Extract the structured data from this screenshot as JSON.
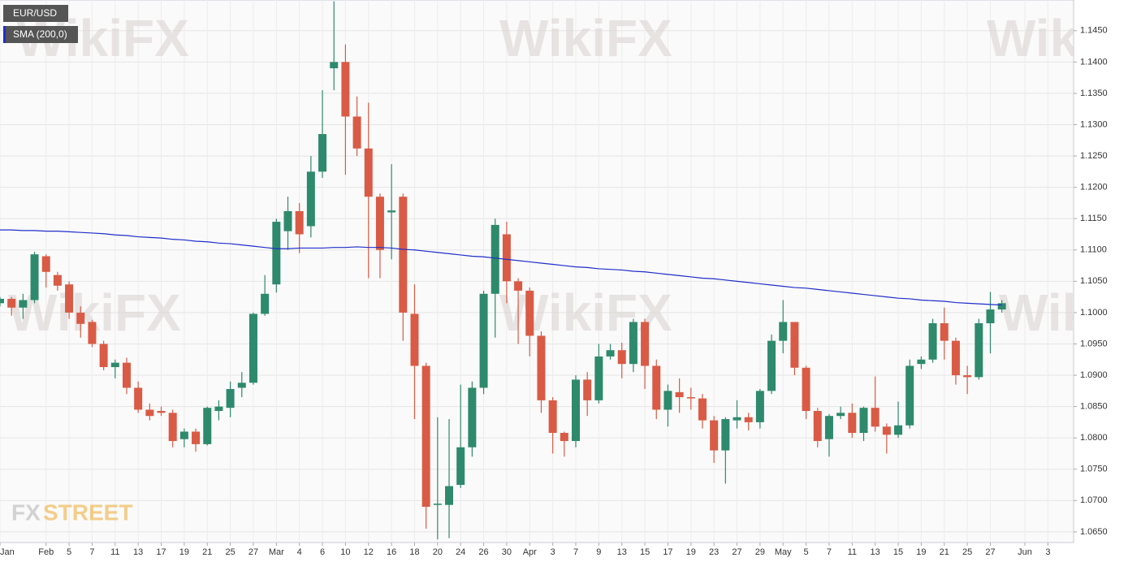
{
  "chart_data": {
    "type": "candlestick",
    "watermark": "WikiFX",
    "logo": [
      "FX",
      "STREET"
    ],
    "categories": [
      "Jan",
      null,
      null,
      null,
      "Feb",
      null,
      "5",
      null,
      "7",
      null,
      "11",
      null,
      "13",
      null,
      "17",
      null,
      "19",
      null,
      "21",
      null,
      "25",
      null,
      "27",
      null,
      "Mar",
      null,
      "4",
      null,
      "6",
      null,
      "10",
      null,
      "12",
      null,
      "16",
      null,
      "18",
      null,
      "20",
      null,
      "24",
      null,
      "26",
      null,
      "30",
      null,
      "Apr",
      null,
      "3",
      null,
      "7",
      null,
      "9",
      null,
      "13",
      null,
      "15",
      null,
      "17",
      null,
      "19",
      null,
      "23",
      null,
      "27",
      null,
      "29",
      null,
      "May",
      null,
      "5",
      null,
      "7",
      null,
      "11",
      null,
      "13",
      null,
      "15",
      null,
      "19",
      null,
      "21",
      null,
      "25",
      null,
      "27",
      null,
      null,
      "Jun",
      null,
      "3"
    ],
    "up_color": "#2e8a6c",
    "down_color": "#d95b45",
    "series": [
      {
        "name": "EUR/USD",
        "open": [
          1.1015,
          1.1022,
          1.1008,
          1.102,
          1.109,
          1.106,
          1.1045,
          1.1,
          1.0985,
          1.095,
          1.0913,
          1.092,
          1.088,
          1.0845,
          1.0843,
          1.084,
          1.0798,
          1.081,
          1.079,
          1.0843,
          1.0848,
          1.088,
          1.0888,
          1.0998,
          1.1045,
          1.113,
          1.1162,
          1.1138,
          1.1225,
          1.139,
          1.14,
          1.1313,
          1.1262,
          1.1185,
          1.116,
          1.1185,
          1.0998,
          1.0915,
          1.0693,
          1.0693,
          1.0725,
          1.0785,
          1.088,
          1.103,
          1.1125,
          1.105,
          1.1035,
          1.0963,
          1.086,
          1.0808,
          1.0795,
          1.0893,
          1.086,
          1.093,
          1.094,
          1.0918,
          1.0985,
          1.0915,
          1.0845,
          1.0873,
          1.0865,
          1.0863,
          1.0828,
          1.078,
          1.0828,
          1.0833,
          1.0825,
          1.0875,
          1.0955,
          1.0985,
          1.0912,
          1.0843,
          1.0798,
          1.0835,
          1.084,
          1.0808,
          1.0848,
          1.0818,
          1.0805,
          1.082,
          1.0918,
          1.0925,
          1.0983,
          1.0955,
          1.09,
          1.0897,
          1.0983,
          1.1005,
          null,
          null,
          null,
          null
        ],
        "high": [
          1.1025,
          1.1025,
          1.103,
          1.1097,
          1.1093,
          1.1065,
          1.105,
          1.101,
          1.0988,
          1.0955,
          1.0925,
          1.0928,
          1.089,
          1.0855,
          1.085,
          1.0845,
          1.0815,
          1.0815,
          1.085,
          1.086,
          1.089,
          1.0905,
          1.1,
          1.106,
          1.115,
          1.1185,
          1.1175,
          1.125,
          1.1355,
          1.1497,
          1.1428,
          1.1345,
          1.1335,
          1.119,
          1.1237,
          1.119,
          1.1045,
          1.092,
          1.0833,
          1.083,
          1.0885,
          1.089,
          1.1035,
          1.115,
          1.1145,
          1.1055,
          1.104,
          1.097,
          1.0865,
          1.081,
          1.09,
          1.0905,
          1.095,
          1.095,
          1.0952,
          1.099,
          1.099,
          1.0925,
          1.0885,
          1.0895,
          1.088,
          1.087,
          1.0835,
          1.0833,
          1.086,
          1.084,
          1.0878,
          1.0965,
          1.102,
          1.0985,
          1.0915,
          1.0848,
          1.0838,
          1.085,
          1.0855,
          1.085,
          1.0898,
          1.0823,
          1.0858,
          1.0925,
          1.093,
          1.099,
          1.1008,
          1.096,
          1.0915,
          1.099,
          1.1033,
          1.102,
          null,
          null,
          null,
          null
        ],
        "low": [
          1.101,
          1.0995,
          1.099,
          1.1015,
          1.104,
          1.1035,
          1.099,
          1.096,
          1.0945,
          1.0908,
          1.0895,
          1.087,
          1.084,
          1.0828,
          1.0835,
          1.0785,
          1.0785,
          1.0778,
          1.0788,
          1.0828,
          1.0833,
          1.0865,
          1.0885,
          1.0995,
          1.1032,
          1.11,
          1.1095,
          1.112,
          1.1215,
          1.1355,
          1.122,
          1.125,
          1.1055,
          1.1055,
          1.1085,
          1.0955,
          1.083,
          1.0655,
          1.0638,
          1.064,
          1.072,
          1.077,
          1.087,
          1.096,
          1.1015,
          1.095,
          1.093,
          1.084,
          1.0775,
          1.077,
          1.0785,
          1.0835,
          1.0855,
          1.0925,
          1.0895,
          1.0905,
          1.0878,
          1.083,
          1.0818,
          1.084,
          1.0845,
          1.0815,
          1.076,
          1.0727,
          1.0815,
          1.0812,
          1.0815,
          1.087,
          1.0935,
          1.09,
          1.083,
          1.0785,
          1.077,
          1.083,
          1.08,
          1.0795,
          1.081,
          1.0775,
          1.08,
          1.0815,
          1.091,
          1.092,
          1.0925,
          1.0885,
          1.087,
          1.0893,
          1.0935,
          1.1,
          null,
          null,
          null,
          null
        ],
        "close": [
          1.1022,
          1.1008,
          1.102,
          1.1093,
          1.1065,
          1.1043,
          1.1,
          1.0982,
          1.095,
          1.0913,
          1.092,
          1.088,
          1.0845,
          1.0835,
          1.084,
          1.0795,
          1.081,
          1.079,
          1.0848,
          1.085,
          1.0878,
          1.0888,
          1.0998,
          1.103,
          1.1145,
          1.1162,
          1.1125,
          1.1225,
          1.1285,
          1.14,
          1.1313,
          1.1262,
          1.1185,
          1.11,
          1.1163,
          1.1,
          1.0915,
          1.069,
          1.0695,
          1.0723,
          1.0785,
          1.088,
          1.103,
          1.114,
          1.105,
          1.1035,
          1.0963,
          1.086,
          1.0808,
          1.0795,
          1.0893,
          1.086,
          1.093,
          1.094,
          1.0918,
          1.0985,
          1.0915,
          1.0845,
          1.0875,
          1.0865,
          1.0863,
          1.0828,
          1.078,
          1.083,
          1.0833,
          1.0825,
          1.0875,
          1.0955,
          1.0985,
          1.0912,
          1.0843,
          1.0795,
          1.0835,
          1.084,
          1.0808,
          1.0848,
          1.0818,
          1.0805,
          1.082,
          1.0915,
          1.0925,
          1.0983,
          1.0955,
          1.09,
          1.0897,
          1.0983,
          1.1005,
          1.1015,
          null,
          null,
          null,
          null
        ],
        "color": "#555555"
      },
      {
        "name": "SMA (200,0)",
        "type": "line",
        "color": "#1f2ec9",
        "values": [
          1.1132,
          1.1132,
          1.1131,
          1.1131,
          1.113,
          1.113,
          1.1129,
          1.1128,
          1.1127,
          1.1126,
          1.1124,
          1.1123,
          1.1121,
          1.112,
          1.1119,
          1.1117,
          1.1116,
          1.1114,
          1.1113,
          1.1111,
          1.111,
          1.1108,
          1.1106,
          1.1104,
          1.1102,
          1.1102,
          1.1103,
          1.1103,
          1.1103,
          1.1104,
          1.1104,
          1.1105,
          1.1104,
          1.1104,
          1.1103,
          1.1101,
          1.11,
          1.1098,
          1.1096,
          1.1094,
          1.1092,
          1.109,
          1.1089,
          1.1087,
          1.1085,
          1.1083,
          1.1081,
          1.1079,
          1.1077,
          1.1075,
          1.1073,
          1.1072,
          1.107,
          1.1069,
          1.1068,
          1.1066,
          1.1065,
          1.1063,
          1.1061,
          1.1059,
          1.1057,
          1.1055,
          1.1054,
          1.1052,
          1.105,
          1.1048,
          1.1046,
          1.1044,
          1.1042,
          1.104,
          1.1039,
          1.1037,
          1.1035,
          1.1033,
          1.1031,
          1.1029,
          1.1027,
          1.1025,
          1.1023,
          1.1022,
          1.102,
          1.1019,
          1.1018,
          1.1016,
          1.1015,
          1.1014,
          1.1013,
          1.1012,
          null,
          null,
          null,
          null
        ]
      }
    ],
    "ylim": [
      1.0633,
      1.1499
    ],
    "yticks": [
      {
        "value": 1.065,
        "label": "1.0650"
      },
      {
        "value": 1.07,
        "label": "1.0700"
      },
      {
        "value": 1.075,
        "label": "1.0750"
      },
      {
        "value": 1.08,
        "label": "1.0800"
      },
      {
        "value": 1.085,
        "label": "1.0850"
      },
      {
        "value": 1.09,
        "label": "1.0900"
      },
      {
        "value": 1.095,
        "label": "1.0950"
      },
      {
        "value": 1.1,
        "label": "1.1000"
      },
      {
        "value": 1.105,
        "label": "1.1050"
      },
      {
        "value": 1.11,
        "label": "1.1100"
      },
      {
        "value": 1.115,
        "label": "1.1150"
      },
      {
        "value": 1.12,
        "label": "1.1200"
      },
      {
        "value": 1.125,
        "label": "1.1250"
      },
      {
        "value": 1.13,
        "label": "1.1300"
      },
      {
        "value": 1.135,
        "label": "1.1350"
      },
      {
        "value": 1.14,
        "label": "1.1400"
      },
      {
        "value": 1.145,
        "label": "1.1450"
      }
    ],
    "grid": true
  }
}
